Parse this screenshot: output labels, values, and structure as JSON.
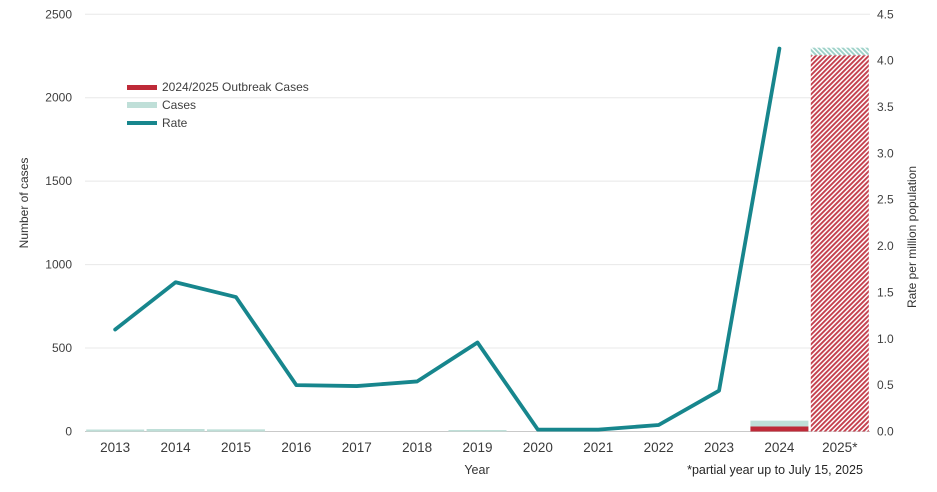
{
  "chart_data": {
    "type": "bar",
    "subtype": "stacked-bar-with-line-combo",
    "title": "",
    "xlabel": "Year",
    "ylabel_left": "Number of cases",
    "ylabel_right": "Rate per million population",
    "footnote": "*partial year up to July 15, 2025",
    "categories": [
      "2013",
      "2014",
      "2015",
      "2016",
      "2017",
      "2018",
      "2019",
      "2020",
      "2021",
      "2022",
      "2023",
      "2024",
      "2025*"
    ],
    "series": [
      {
        "name": "2024/2025 Outbreak Cases",
        "type": "bar",
        "axis": "left",
        "values": [
          0,
          0,
          0,
          0,
          0,
          0,
          0,
          0,
          0,
          0,
          0,
          30,
          2255
        ]
      },
      {
        "name": "Cases",
        "type": "bar",
        "axis": "left",
        "values": [
          12,
          15,
          13,
          0,
          0,
          0,
          9,
          0,
          0,
          0,
          0,
          35,
          45
        ]
      },
      {
        "name": "Rate",
        "type": "line",
        "axis": "right",
        "values": [
          1.1,
          1.61,
          1.45,
          0.5,
          0.49,
          0.54,
          0.96,
          0.02,
          0.02,
          0.07,
          0.44,
          4.13,
          null
        ]
      }
    ],
    "hatched_category_index": 12,
    "axes": {
      "left": {
        "min": 0,
        "max": 2500,
        "step": 500,
        "ticks": [
          0,
          500,
          1000,
          1500,
          2000,
          2500
        ]
      },
      "right": {
        "min": 0,
        "max": 4.5,
        "step": 0.5,
        "ticks": [
          0,
          0.5,
          1,
          1.5,
          2,
          2.5,
          3,
          3.5,
          4,
          4.5
        ]
      }
    },
    "grid": "horizontal-left-axis-only",
    "legend_position": "inside-upper-left",
    "colors": {
      "outbreak": "#be2a38",
      "cases": "#bfdfd8",
      "rate": "#17868d",
      "hatch_red": "#c4404e",
      "hatch_teal": "#9ed2c9",
      "grid": "#e8e8e8",
      "axis_line": "#c9c9c9",
      "text": "#404040"
    }
  },
  "legend": {
    "items": [
      {
        "label": "2024/2025 Outbreak Cases",
        "swatch": "outbreak-bar"
      },
      {
        "label": "Cases",
        "swatch": "cases-bar"
      },
      {
        "label": "Rate",
        "swatch": "rate-line"
      }
    ]
  }
}
